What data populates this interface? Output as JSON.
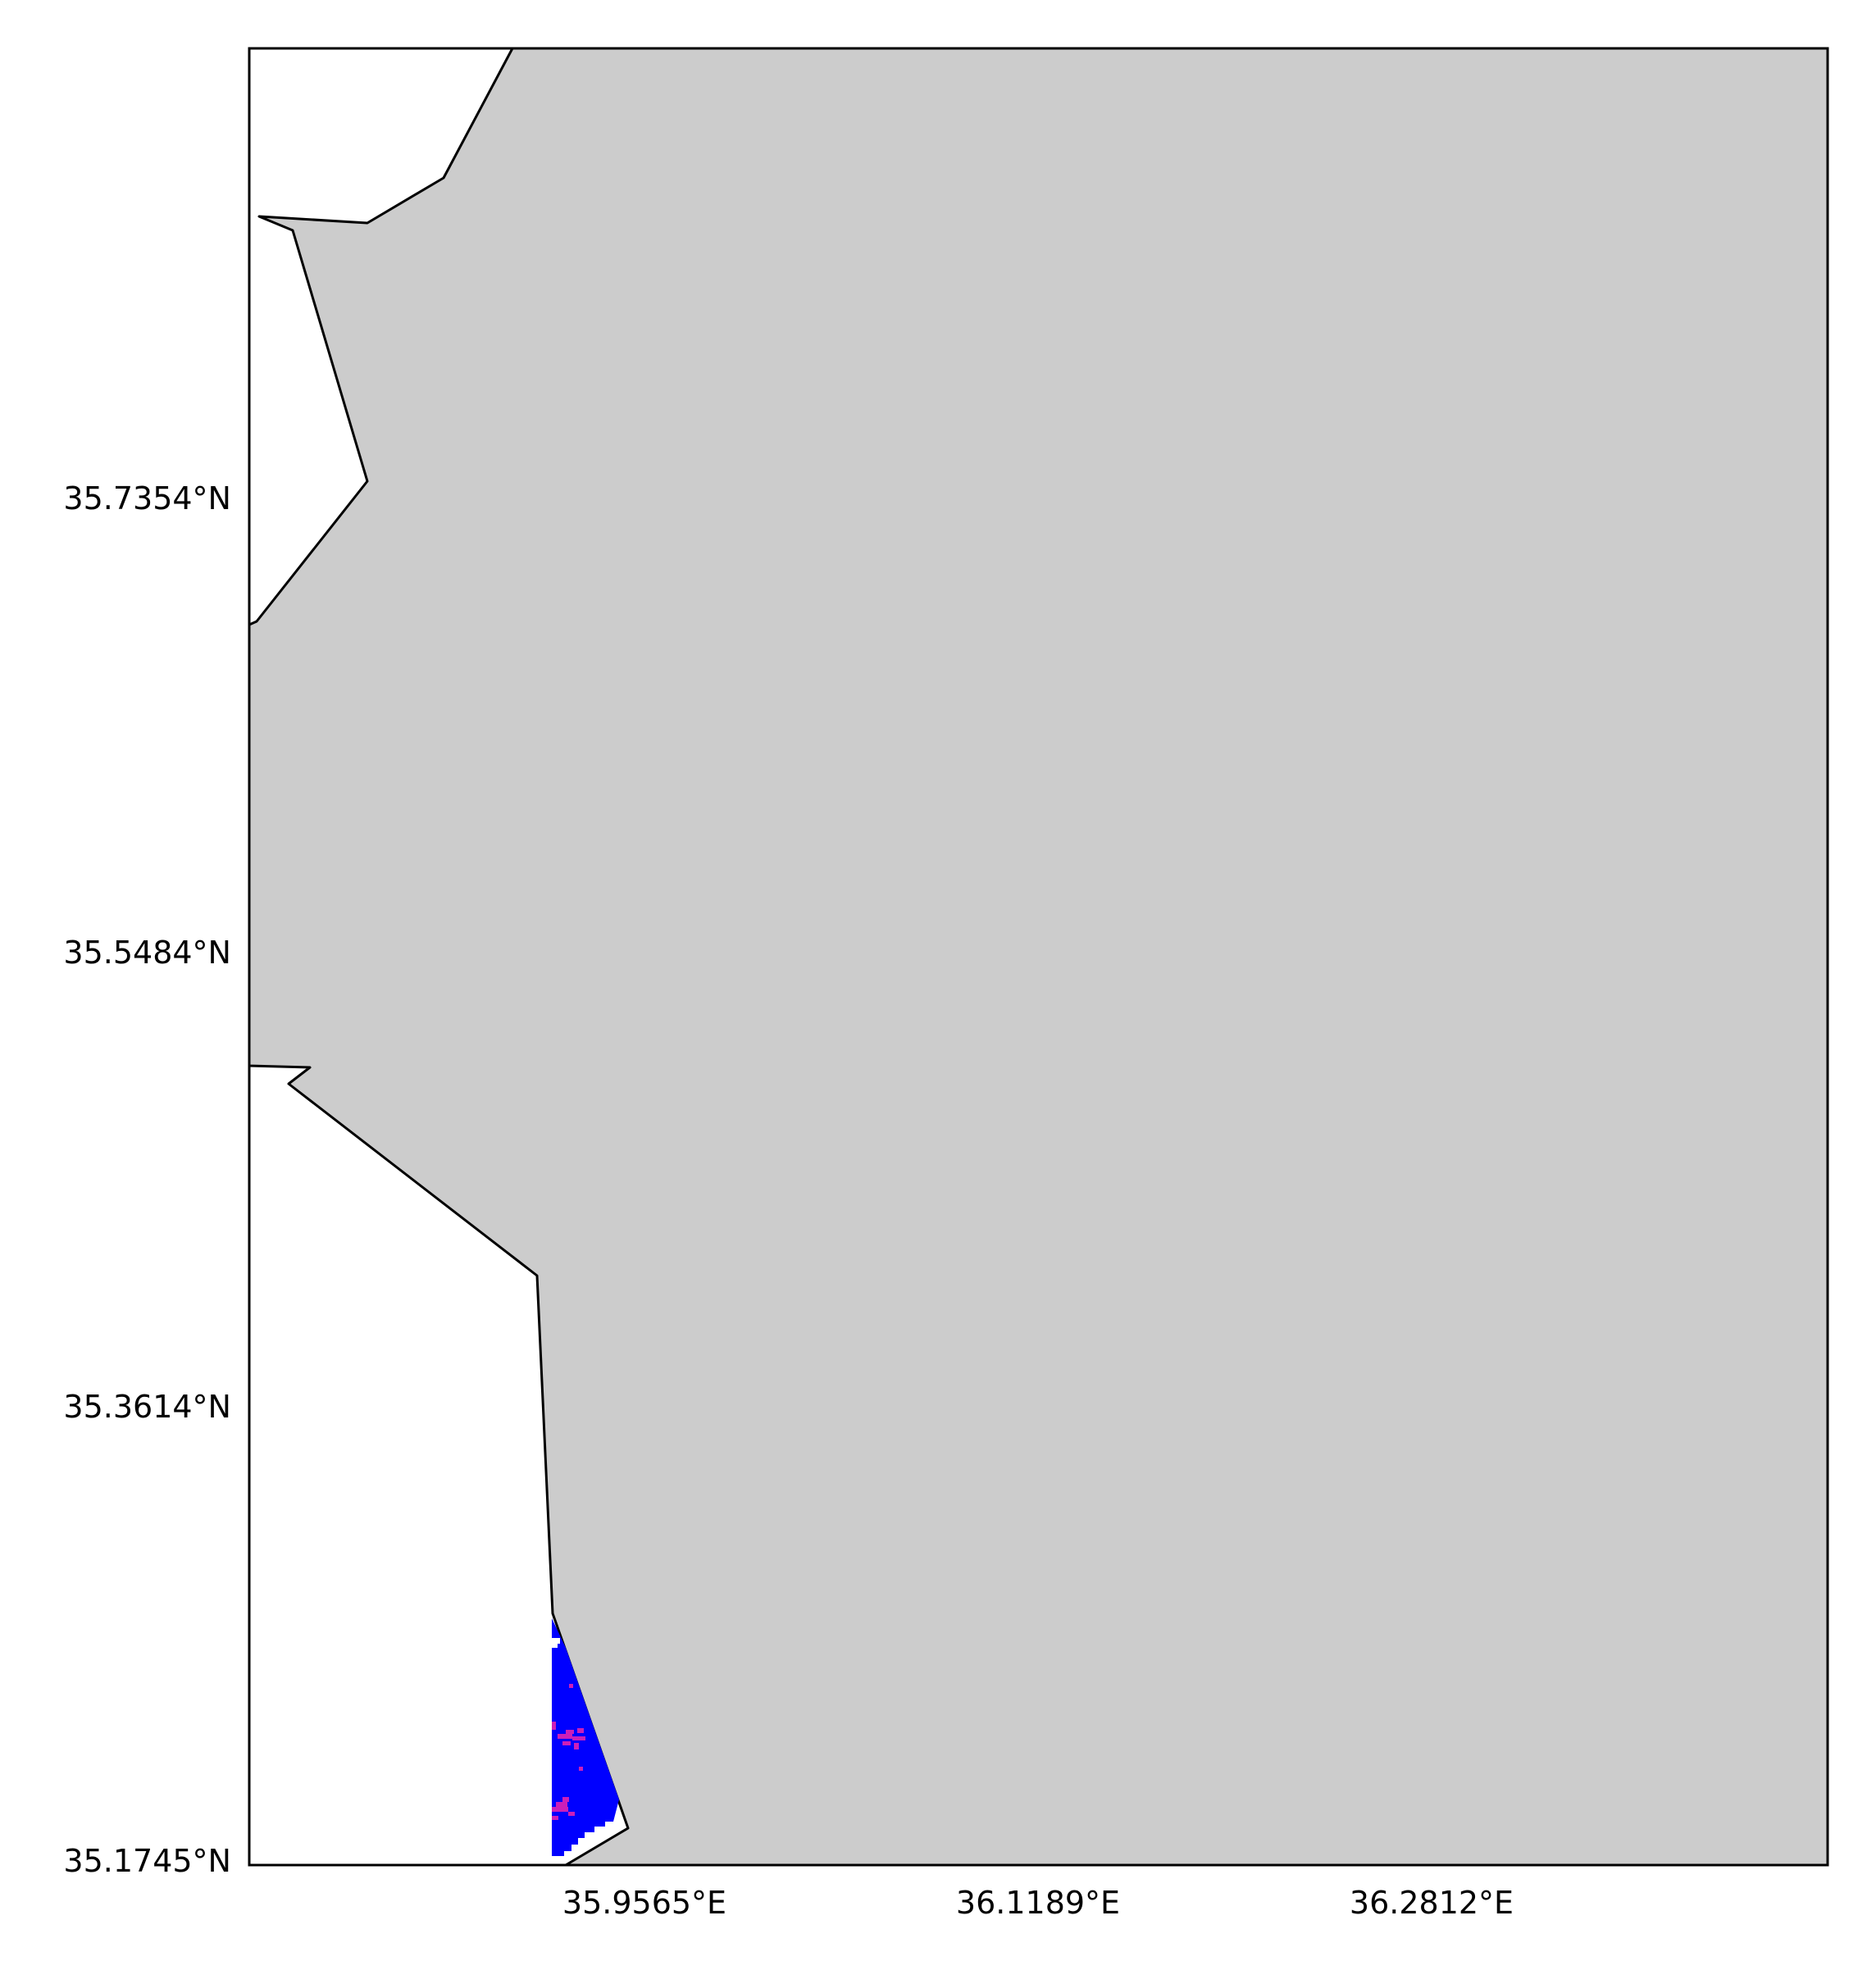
{
  "map": {
    "latitude_labels": [
      "35.7354°N",
      "35.5484°N",
      "35.3614°N",
      "35.1745°N"
    ],
    "longitude_labels": [
      "35.9565°E",
      "36.1189°E",
      "36.2812°E"
    ],
    "colors": {
      "land": "#cccccc",
      "sea": "#ffffff",
      "coastline": "#000000",
      "frame": "#000000",
      "data_primary": "#0000ff",
      "data_secondary": "#cc1fb8"
    }
  }
}
